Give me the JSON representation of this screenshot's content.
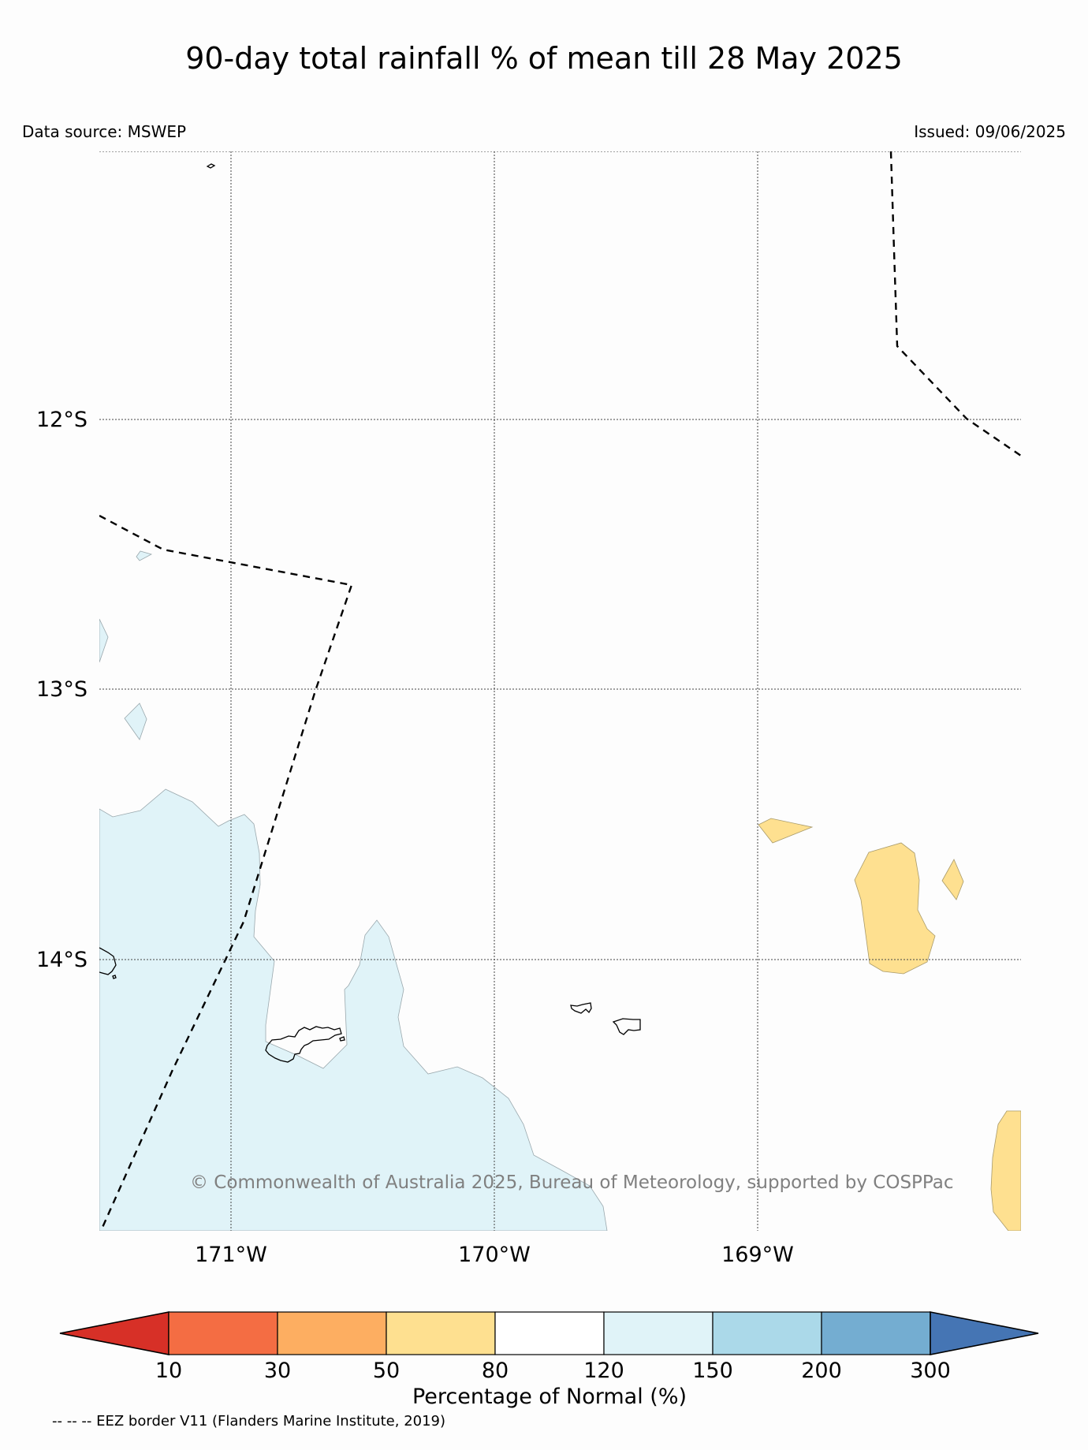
{
  "header": {
    "title": "90-day total rainfall % of mean till 28 May 2025",
    "data_source": "Data source: MSWEP",
    "issued": "Issued: 09/06/2025"
  },
  "map": {
    "extent": {
      "lon_min": -171.5,
      "lon_max": -168.0,
      "lat_min": -15.0,
      "lat_max": -11.0
    },
    "lat_labels": [
      "12°S",
      "13°S",
      "14°S"
    ],
    "lon_labels": [
      "171°W",
      "170°W",
      "169°W"
    ],
    "copyright": "© Commonwealth of Australia 2025, Bureau of Meteorology, supported by COSPPac",
    "colors": {
      "ocean": "#fdfdfd",
      "above_normal_120_150": "#e0f3f8",
      "below_normal_50_80": "#fee090",
      "eez_border": "#000000",
      "copyright_text": "#808080"
    }
  },
  "colorbar": {
    "title": "Percentage of Normal (%)",
    "ticks": [
      "10",
      "30",
      "50",
      "80",
      "120",
      "150",
      "200",
      "300"
    ],
    "colors": [
      "#d73027",
      "#f46d43",
      "#fdae61",
      "#fee090",
      "#ffffff",
      "#e0f3f8",
      "#abd9e9",
      "#74add1",
      "#4575b4"
    ]
  },
  "footer": {
    "eez_note": "-- -- -- EEZ border V11 (Flanders Marine Institute, 2019)"
  }
}
